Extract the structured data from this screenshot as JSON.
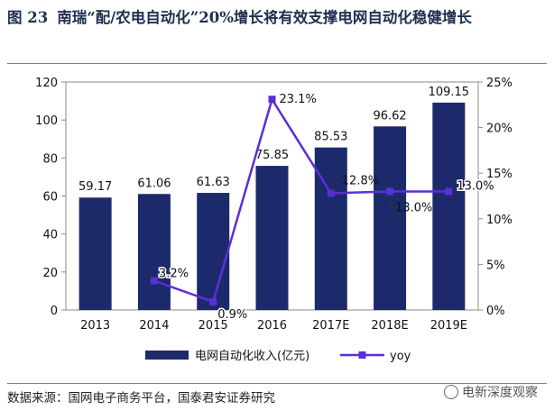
{
  "header": {
    "figure_label": "图 23",
    "title": "南瑞“配/农电自动化”20%增长将有效支撑电网自动化稳健增长"
  },
  "footer": {
    "source": "数据来源：国网电子商务平台，国泰君安证券研究",
    "watermark": "电新深度观察"
  },
  "chart_data": {
    "type": "bar",
    "categories": [
      "2013",
      "2014",
      "2015",
      "2016",
      "2017E",
      "2018E",
      "2019E"
    ],
    "series": [
      {
        "name": "电网自动化收入(亿元)",
        "type": "bar",
        "axis": "left",
        "values": [
          59.17,
          61.06,
          61.63,
          75.85,
          85.53,
          96.62,
          109.15
        ],
        "labels": [
          "59.17",
          "61.06",
          "61.63",
          "75.85",
          "85.53",
          "96.62",
          "109.15"
        ],
        "color": "#1c2a6b"
      },
      {
        "name": "yoy",
        "type": "line",
        "axis": "right",
        "values": [
          null,
          3.2,
          0.9,
          23.1,
          12.8,
          13.0,
          13.0
        ],
        "labels": [
          "",
          "3.2%",
          "0.9%",
          "23.1%",
          "12.8%",
          "13.0%",
          "13.0%"
        ],
        "color": "#5b2fd8"
      }
    ],
    "ylim_left": [
      0,
      120
    ],
    "yticks_left": [
      "0",
      "20",
      "40",
      "60",
      "80",
      "100",
      "120"
    ],
    "ylim_right": [
      0,
      25
    ],
    "yticks_right": [
      "0%",
      "5%",
      "10%",
      "15%",
      "20%",
      "25%"
    ],
    "grid": false,
    "legend": "bottom"
  }
}
